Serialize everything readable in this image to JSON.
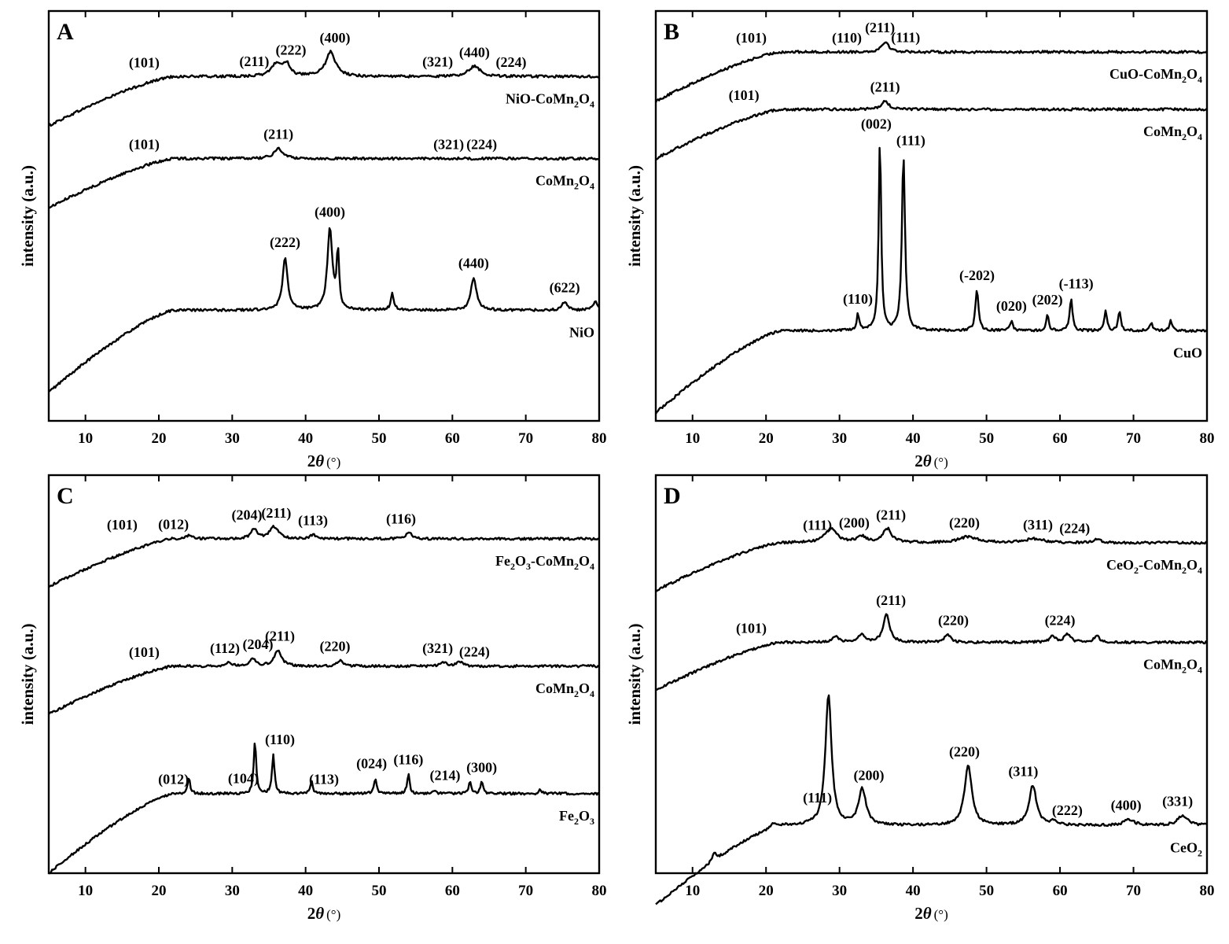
{
  "chart_data": [
    {
      "panel": "A",
      "type": "line",
      "xlabel_symbol": "2θ",
      "xlabel_unit": "(°)",
      "ylabel": "intensity (a.u.)",
      "xlim": [
        5,
        80
      ],
      "xticks": [
        10,
        20,
        30,
        40,
        50,
        60,
        70,
        80
      ],
      "series": [
        {
          "name": "NiO-CoMn2O4",
          "label_main": "NiO-CoMn",
          "label_parts": [
            "2",
            "O",
            "4"
          ],
          "baseline": 0.84,
          "peaks": [
            {
              "x": 36.0,
              "h": 0.03,
              "w": 0.8
            },
            {
              "x": 37.4,
              "h": 0.03,
              "w": 0.6
            },
            {
              "x": 43.4,
              "h": 0.06,
              "w": 0.8
            },
            {
              "x": 63.0,
              "h": 0.025,
              "w": 1.0
            }
          ],
          "peak_labels": [
            {
              "x": 18,
              "text": "(101)"
            },
            {
              "x": 33,
              "text": "(211)"
            },
            {
              "x": 38,
              "text": "(222)"
            },
            {
              "x": 44,
              "text": "(400)"
            },
            {
              "x": 58,
              "text": "(321)"
            },
            {
              "x": 63,
              "text": "(440)"
            },
            {
              "x": 68,
              "text": "(224)"
            }
          ]
        },
        {
          "name": "CoMn2O4",
          "label_main": "CoMn",
          "label_parts": [
            "2",
            "O",
            "4"
          ],
          "baseline": 0.64,
          "peaks": [
            {
              "x": 36.3,
              "h": 0.025,
              "w": 0.7
            }
          ],
          "peak_labels": [
            {
              "x": 18,
              "text": "(101)"
            },
            {
              "x": 36.3,
              "text": "(211)"
            },
            {
              "x": 59.5,
              "text": "(321)"
            },
            {
              "x": 64,
              "text": "(224)"
            }
          ]
        },
        {
          "name": "NiO",
          "label_main": "NiO",
          "label_parts": [],
          "baseline": 0.27,
          "peaks": [
            {
              "x": 37.2,
              "h": 0.13,
              "w": 0.4
            },
            {
              "x": 43.3,
              "h": 0.2,
              "w": 0.4
            },
            {
              "x": 44.4,
              "h": 0.14,
              "w": 0.2
            },
            {
              "x": 51.8,
              "h": 0.04,
              "w": 0.25
            },
            {
              "x": 62.9,
              "h": 0.08,
              "w": 0.45
            },
            {
              "x": 75.3,
              "h": 0.02,
              "w": 0.4
            },
            {
              "x": 79.5,
              "h": 0.02,
              "w": 0.4
            }
          ],
          "peak_labels": [
            {
              "x": 37.2,
              "text": "(222)"
            },
            {
              "x": 43.3,
              "text": "(400)"
            },
            {
              "x": 62.9,
              "text": "(440)"
            },
            {
              "x": 75.3,
              "text": "(622)"
            }
          ]
        }
      ]
    },
    {
      "panel": "B",
      "type": "line",
      "xlabel_symbol": "2θ",
      "xlabel_unit": "(°)",
      "ylabel": "intensity (a.u.)",
      "xlim": [
        5,
        80
      ],
      "xticks": [
        10,
        20,
        30,
        40,
        50,
        60,
        70,
        80
      ],
      "series": [
        {
          "name": "CuO-CoMn2O4",
          "label_main": "CuO-CoMn",
          "label_parts": [
            "2",
            "O",
            "4"
          ],
          "baseline": 0.9,
          "peaks": [
            {
              "x": 36.2,
              "h": 0.025,
              "w": 0.6
            }
          ],
          "peak_labels": [
            {
              "x": 18,
              "text": "(101)"
            },
            {
              "x": 31,
              "text": "(110)"
            },
            {
              "x": 35.5,
              "text": "(211)"
            },
            {
              "x": 39,
              "text": "(111)"
            }
          ]
        },
        {
          "name": "CoMn2O4",
          "label_main": "CoMn",
          "label_parts": [
            "2",
            "O",
            "4"
          ],
          "baseline": 0.76,
          "peaks": [
            {
              "x": 36.2,
              "h": 0.02,
              "w": 0.6
            }
          ],
          "peak_labels": [
            {
              "x": 17,
              "text": "(101)"
            },
            {
              "x": 36.2,
              "text": "(211)"
            }
          ]
        },
        {
          "name": "CuO",
          "label_main": "CuO",
          "label_parts": [],
          "baseline": 0.22,
          "peaks": [
            {
              "x": 32.5,
              "h": 0.04,
              "w": 0.2
            },
            {
              "x": 35.5,
              "h": 0.47,
              "w": 0.2
            },
            {
              "x": 38.7,
              "h": 0.43,
              "w": 0.25
            },
            {
              "x": 48.7,
              "h": 0.1,
              "w": 0.25
            },
            {
              "x": 53.4,
              "h": 0.025,
              "w": 0.2
            },
            {
              "x": 58.3,
              "h": 0.04,
              "w": 0.2
            },
            {
              "x": 61.5,
              "h": 0.08,
              "w": 0.22
            },
            {
              "x": 66.2,
              "h": 0.05,
              "w": 0.2
            },
            {
              "x": 68.1,
              "h": 0.05,
              "w": 0.2
            },
            {
              "x": 72.4,
              "h": 0.02,
              "w": 0.2
            },
            {
              "x": 75.1,
              "h": 0.025,
              "w": 0.2
            }
          ],
          "peak_labels": [
            {
              "x": 32.5,
              "text": "(110)"
            },
            {
              "x": 35.0,
              "text": "(002)"
            },
            {
              "x": 39.7,
              "text": "(111)"
            },
            {
              "x": 48.7,
              "text": "(-202)"
            },
            {
              "x": 53.4,
              "text": "(020)"
            },
            {
              "x": 58.3,
              "text": "(202)"
            },
            {
              "x": 62.2,
              "text": "(-113)"
            }
          ]
        }
      ]
    },
    {
      "panel": "C",
      "type": "line",
      "xlabel_symbol": "2θ",
      "xlabel_unit": "(°)",
      "ylabel": "intensity (a.u.)",
      "xlim": [
        5,
        80
      ],
      "xticks": [
        10,
        20,
        30,
        40,
        50,
        60,
        70,
        80
      ],
      "series": [
        {
          "name": "Fe2O3-CoMn2O4",
          "label_main": "Fe",
          "label_parts": [
            "2",
            "O",
            "3",
            "-CoMn",
            "2",
            "O",
            "4"
          ],
          "baseline": 0.84,
          "peaks": [
            {
              "x": 24.2,
              "h": 0.01,
              "w": 0.5
            },
            {
              "x": 33.0,
              "h": 0.025,
              "w": 0.5
            },
            {
              "x": 35.7,
              "h": 0.03,
              "w": 0.7
            },
            {
              "x": 41.0,
              "h": 0.01,
              "w": 0.5
            },
            {
              "x": 54.1,
              "h": 0.015,
              "w": 0.5
            }
          ],
          "peak_labels": [
            {
              "x": 15,
              "text": "(101)"
            },
            {
              "x": 22,
              "text": "(012)"
            },
            {
              "x": 32,
              "text": "(204)"
            },
            {
              "x": 36,
              "text": "(211)"
            },
            {
              "x": 41,
              "text": "(113)"
            },
            {
              "x": 53,
              "text": "(116)"
            }
          ]
        },
        {
          "name": "CoMn2O4",
          "label_main": "CoMn",
          "label_parts": [
            "2",
            "O",
            "4"
          ],
          "baseline": 0.52,
          "peaks": [
            {
              "x": 29.5,
              "h": 0.01,
              "w": 0.5
            },
            {
              "x": 32.8,
              "h": 0.02,
              "w": 0.5
            },
            {
              "x": 36.2,
              "h": 0.04,
              "w": 0.6
            },
            {
              "x": 44.7,
              "h": 0.015,
              "w": 0.5
            },
            {
              "x": 58.9,
              "h": 0.01,
              "w": 0.5
            },
            {
              "x": 61.0,
              "h": 0.01,
              "w": 0.5
            }
          ],
          "peak_labels": [
            {
              "x": 18,
              "text": "(101)"
            },
            {
              "x": 29,
              "text": "(112)"
            },
            {
              "x": 33.5,
              "text": "(204)"
            },
            {
              "x": 36.5,
              "text": "(211)"
            },
            {
              "x": 44,
              "text": "(220)"
            },
            {
              "x": 58,
              "text": "(321)"
            },
            {
              "x": 63,
              "text": "(224)"
            }
          ]
        },
        {
          "name": "Fe2O3",
          "label_main": "Fe",
          "label_parts": [
            "2",
            "O",
            "3"
          ],
          "baseline": 0.2,
          "peaks": [
            {
              "x": 24.1,
              "h": 0.04,
              "w": 0.2
            },
            {
              "x": 33.1,
              "h": 0.13,
              "w": 0.2
            },
            {
              "x": 35.6,
              "h": 0.1,
              "w": 0.2
            },
            {
              "x": 40.8,
              "h": 0.03,
              "w": 0.2
            },
            {
              "x": 49.5,
              "h": 0.04,
              "w": 0.2
            },
            {
              "x": 54.0,
              "h": 0.05,
              "w": 0.2
            },
            {
              "x": 57.6,
              "h": 0.01,
              "w": 0.2
            },
            {
              "x": 62.4,
              "h": 0.03,
              "w": 0.2
            },
            {
              "x": 64.0,
              "h": 0.03,
              "w": 0.2
            },
            {
              "x": 72.0,
              "h": 0.01,
              "w": 0.2
            }
          ],
          "peak_labels": [
            {
              "x": 22,
              "text": "(012)"
            },
            {
              "x": 31.5,
              "text": "(104)"
            },
            {
              "x": 36.5,
              "text": "(110)"
            },
            {
              "x": 42.5,
              "text": "(113)"
            },
            {
              "x": 49,
              "text": "(024)"
            },
            {
              "x": 54,
              "text": "(116)"
            },
            {
              "x": 59,
              "text": "(214)"
            },
            {
              "x": 64,
              "text": "(300)"
            }
          ]
        }
      ]
    },
    {
      "panel": "D",
      "type": "line",
      "xlabel_symbol": "2θ",
      "xlabel_unit": "(°)",
      "ylabel": "intensity (a.u.)",
      "xlim": [
        5,
        80
      ],
      "xticks": [
        10,
        20,
        30,
        40,
        50,
        60,
        70,
        80
      ],
      "series": [
        {
          "name": "CeO2-CoMn2O4",
          "label_main": "CeO",
          "label_parts": [
            "2",
            "-CoMn",
            "2",
            "O",
            "4"
          ],
          "baseline": 0.83,
          "peaks": [
            {
              "x": 28.8,
              "h": 0.035,
              "w": 1.0
            },
            {
              "x": 33.0,
              "h": 0.015,
              "w": 0.8
            },
            {
              "x": 36.5,
              "h": 0.035,
              "w": 0.7
            },
            {
              "x": 47.5,
              "h": 0.015,
              "w": 1.5
            },
            {
              "x": 56.5,
              "h": 0.01,
              "w": 1.5
            },
            {
              "x": 65.0,
              "h": 0.01,
              "w": 0.5
            }
          ],
          "peak_labels": [
            {
              "x": 27,
              "text": "(111)"
            },
            {
              "x": 32,
              "text": "(200)"
            },
            {
              "x": 37,
              "text": "(211)"
            },
            {
              "x": 47,
              "text": "(220)"
            },
            {
              "x": 57,
              "text": "(311)"
            },
            {
              "x": 62,
              "text": "(224)"
            }
          ]
        },
        {
          "name": "CoMn2O4",
          "label_main": "CoMn",
          "label_parts": [
            "2",
            "O",
            "4"
          ],
          "baseline": 0.58,
          "peaks": [
            {
              "x": 29.5,
              "h": 0.015,
              "w": 0.5
            },
            {
              "x": 33.0,
              "h": 0.02,
              "w": 0.6
            },
            {
              "x": 36.4,
              "h": 0.07,
              "w": 0.5
            },
            {
              "x": 44.7,
              "h": 0.02,
              "w": 0.5
            },
            {
              "x": 59.0,
              "h": 0.015,
              "w": 0.5
            },
            {
              "x": 61.0,
              "h": 0.02,
              "w": 0.5
            },
            {
              "x": 65.0,
              "h": 0.015,
              "w": 0.5
            }
          ],
          "peak_labels": [
            {
              "x": 18,
              "text": "(101)"
            },
            {
              "x": 37,
              "text": "(211)"
            },
            {
              "x": 45.5,
              "text": "(220)"
            },
            {
              "x": 60,
              "text": "(224)"
            }
          ]
        },
        {
          "name": "CeO2",
          "label_main": "CeO",
          "label_parts": [
            "2"
          ],
          "baseline": 0.12,
          "peaks": [
            {
              "x": 13,
              "h": 0.02,
              "w": 0.3
            },
            {
              "x": 21,
              "h": 0.01,
              "w": 0.3
            },
            {
              "x": 28.5,
              "h": 0.33,
              "w": 0.5
            },
            {
              "x": 33.1,
              "h": 0.09,
              "w": 0.6
            },
            {
              "x": 47.5,
              "h": 0.15,
              "w": 0.6
            },
            {
              "x": 56.3,
              "h": 0.1,
              "w": 0.6
            },
            {
              "x": 59.1,
              "h": 0.01,
              "w": 0.5
            },
            {
              "x": 69.4,
              "h": 0.015,
              "w": 0.8
            },
            {
              "x": 76.7,
              "h": 0.025,
              "w": 0.8
            }
          ],
          "peak_labels": [
            {
              "x": 27,
              "text": "(111)"
            },
            {
              "x": 34,
              "text": "(200)"
            },
            {
              "x": 47,
              "text": "(220)"
            },
            {
              "x": 55,
              "text": "(311)"
            },
            {
              "x": 61,
              "text": "(222)"
            },
            {
              "x": 69,
              "text": "(400)"
            },
            {
              "x": 76,
              "text": "(331)"
            }
          ]
        }
      ]
    }
  ]
}
